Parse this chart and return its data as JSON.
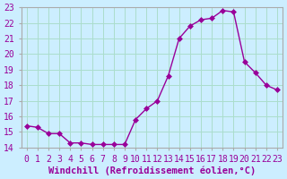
{
  "xlabel": "Windchill (Refroidissement éolien,°C)",
  "ylabel": "",
  "background_color": "#cceeff",
  "line_color": "#990099",
  "marker_color": "#990099",
  "grid_color": "#aaddcc",
  "x_values": [
    0,
    1,
    2,
    3,
    4,
    5,
    6,
    7,
    8,
    9,
    10,
    11,
    12,
    13,
    14,
    15,
    16,
    17,
    18,
    19,
    20,
    21,
    22,
    23
  ],
  "y_values": [
    15.4,
    15.3,
    14.9,
    14.9,
    14.3,
    14.3,
    14.2,
    14.2,
    14.2,
    14.2,
    15.8,
    16.5,
    17.0,
    18.6,
    21.0,
    21.8,
    22.2,
    22.3,
    22.8,
    22.7,
    19.5,
    18.8,
    18.0,
    17.7
  ],
  "ylim": [
    14,
    23
  ],
  "yticks": [
    14,
    15,
    16,
    17,
    18,
    19,
    20,
    21,
    22,
    23
  ],
  "xticks": [
    0,
    1,
    2,
    3,
    4,
    5,
    6,
    7,
    8,
    9,
    10,
    11,
    12,
    13,
    14,
    15,
    16,
    17,
    18,
    19,
    20,
    21,
    22,
    23
  ],
  "tick_fontsize": 7,
  "xlabel_fontsize": 7.5,
  "line_width": 1.0,
  "marker_size": 3
}
